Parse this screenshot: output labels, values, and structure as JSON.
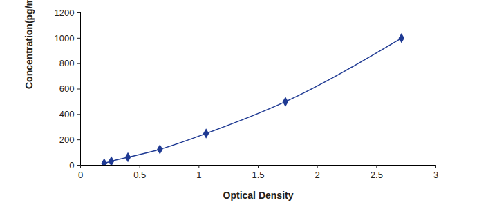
{
  "chart_data": {
    "type": "line",
    "x_label": "Optical Density",
    "y_label": "Concentration(pg/mL)",
    "x": [
      0.2,
      0.26,
      0.4,
      0.67,
      1.06,
      1.73,
      2.71
    ],
    "values": [
      15.6,
      31.2,
      62.5,
      125,
      250,
      500,
      1000
    ],
    "color": "#1f3a93",
    "marker": "diamond",
    "line_style": "solid",
    "xlim": [
      0,
      3
    ],
    "xticks": [
      0,
      0.5,
      1,
      1.5,
      2,
      2.5,
      3
    ],
    "ylim": [
      0,
      1200
    ],
    "yticks": [
      0,
      200,
      400,
      600,
      800,
      1000,
      1200
    ],
    "grid": false
  }
}
